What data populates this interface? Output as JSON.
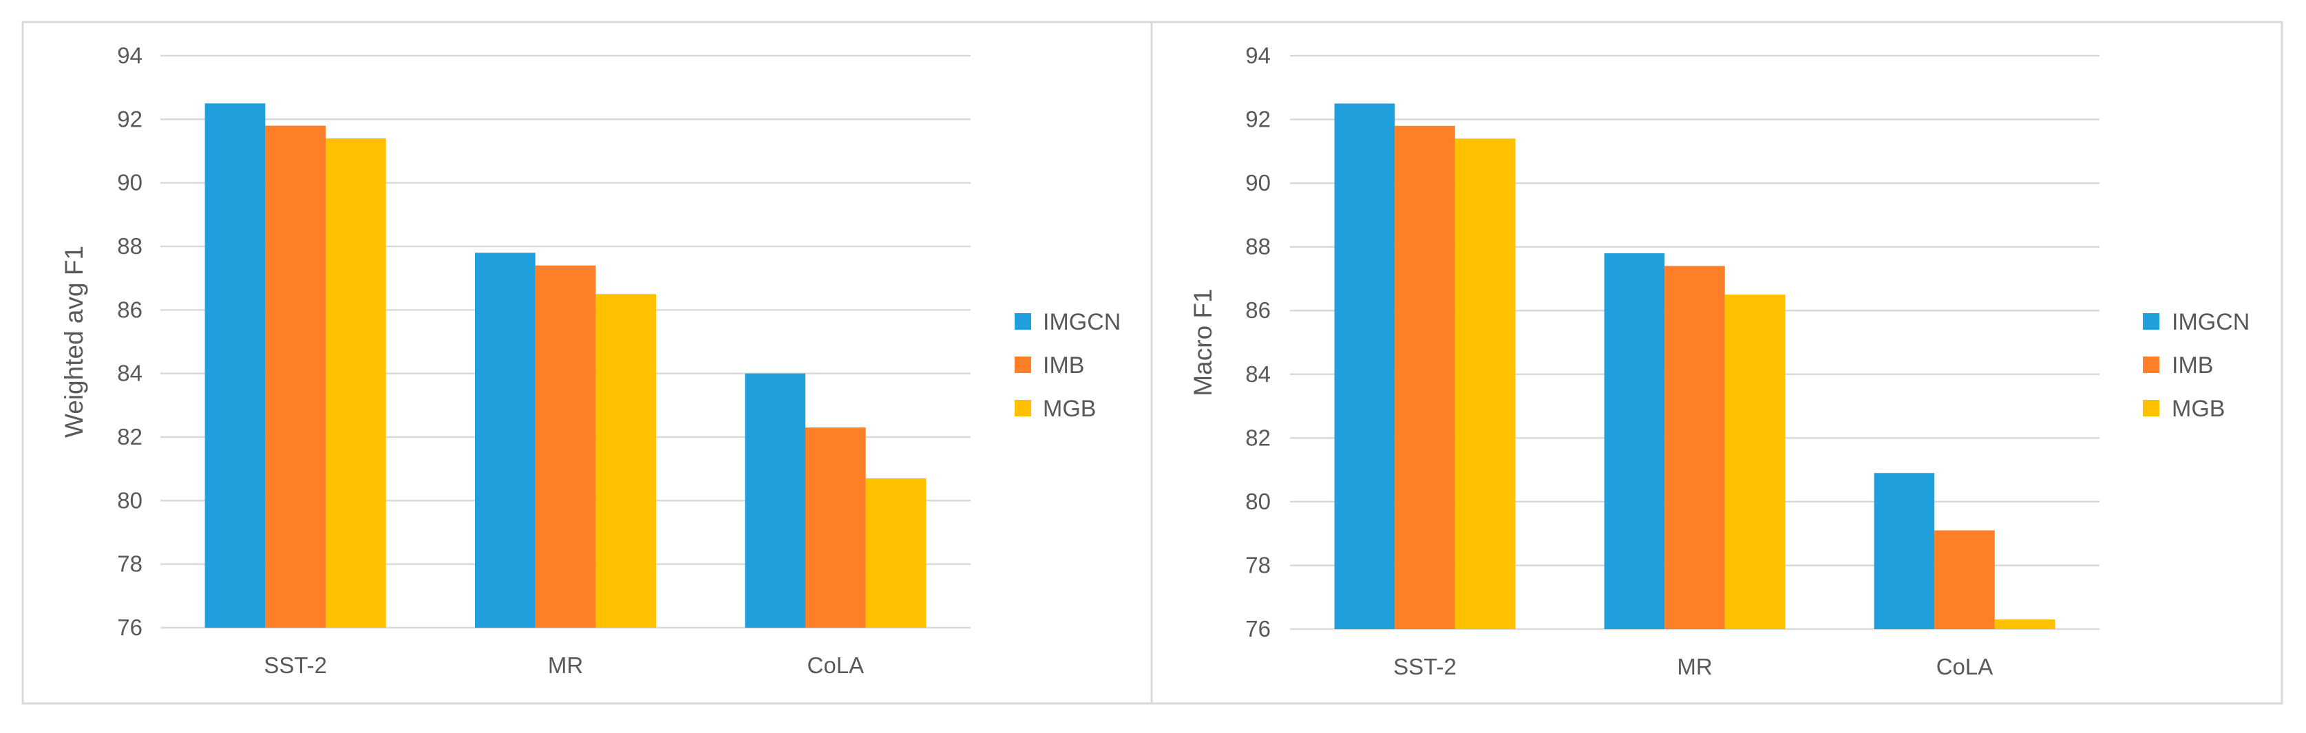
{
  "colors": {
    "IMGCN": "#1f9fdb",
    "IMB": "#fd7f28",
    "MGB": "#ffc000"
  },
  "chart_data": [
    {
      "type": "bar",
      "title": "",
      "xlabel": "",
      "ylabel": "Weighted avg F1",
      "categories": [
        "SST-2",
        "MR",
        "CoLA"
      ],
      "ylim": [
        76,
        94
      ],
      "yticks": [
        76,
        78,
        80,
        82,
        84,
        86,
        88,
        90,
        92,
        94
      ],
      "grid": true,
      "legend_position": "right",
      "series": [
        {
          "name": "IMGCN",
          "values": [
            92.5,
            87.8,
            84.0
          ]
        },
        {
          "name": "IMB",
          "values": [
            91.8,
            87.4,
            82.3
          ]
        },
        {
          "name": "MGB",
          "values": [
            91.4,
            86.5,
            80.7
          ]
        }
      ]
    },
    {
      "type": "bar",
      "title": "",
      "xlabel": "",
      "ylabel": "Macro F1",
      "categories": [
        "SST-2",
        "MR",
        "CoLA"
      ],
      "ylim": [
        76,
        94
      ],
      "yticks": [
        76,
        78,
        80,
        82,
        84,
        86,
        88,
        90,
        92,
        94
      ],
      "grid": true,
      "legend_position": "right",
      "series": [
        {
          "name": "IMGCN",
          "values": [
            92.5,
            87.8,
            80.9
          ]
        },
        {
          "name": "IMB",
          "values": [
            91.8,
            87.4,
            79.1
          ]
        },
        {
          "name": "MGB",
          "values": [
            91.4,
            86.5,
            76.3
          ]
        }
      ]
    }
  ]
}
